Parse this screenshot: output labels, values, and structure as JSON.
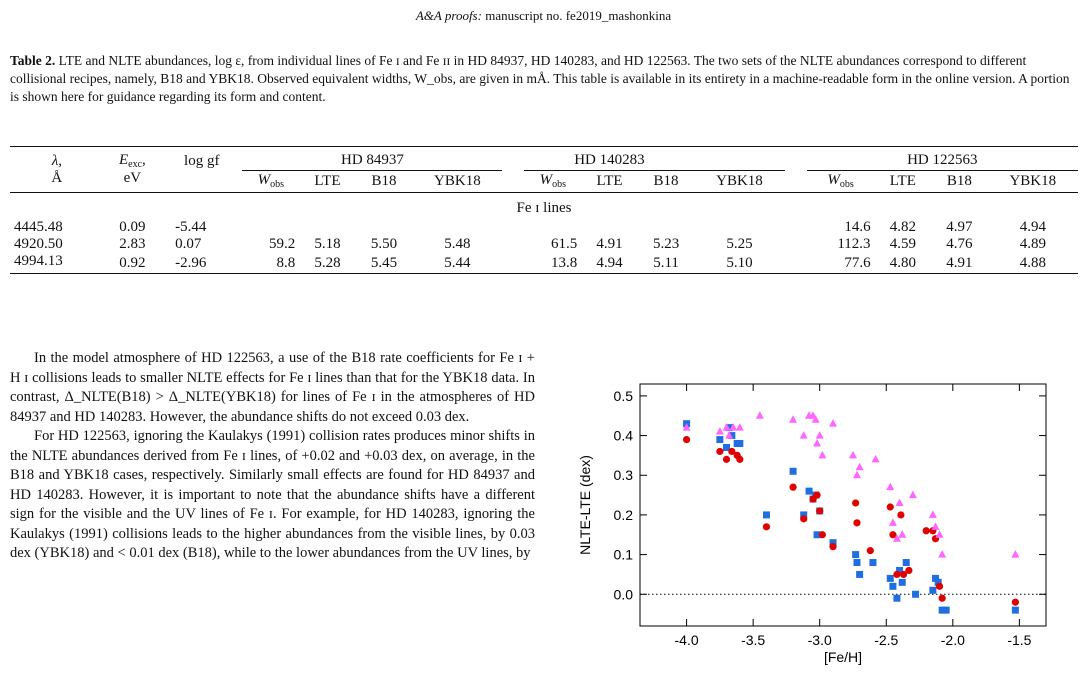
{
  "header": {
    "journal": "A&A proofs:",
    "rest": " manuscript no. fe2019_mashonkina"
  },
  "caption": {
    "label": "Table 2.",
    "text": " LTE and NLTE abundances, log ε, from individual lines of Fe ɪ and Fe ɪɪ in HD 84937, HD 140283, and HD 122563. The two sets of the NLTE abundances correspond to different collisional recipes, namely, B18 and YBK18. Observed equivalent widths, W_obs, are given in mÅ. This table is available in its entirety in a machine-readable form in the online version. A portion is shown here for guidance regarding its form and content."
  },
  "table": {
    "col_lambda": "λ,",
    "col_lambda_unit": "Å",
    "col_eexc": "E",
    "col_eexc_sub": "exc",
    "col_eexc_tail": ",",
    "col_eexc_unit": "eV",
    "col_loggf": "log gf",
    "stars": [
      "HD 84937",
      "HD 140283",
      "HD 122563"
    ],
    "sub_w": "W",
    "sub_w_sub": "obs",
    "sub_lte": "LTE",
    "sub_b18": "B18",
    "sub_ybk": "YBK18",
    "section": "Fe ɪ lines",
    "rows": [
      [
        "4445.48",
        "0.09",
        "-5.44",
        "",
        "",
        "",
        "",
        "",
        "",
        "",
        "",
        "14.6",
        "4.82",
        "4.97",
        "4.94"
      ],
      [
        "4920.50",
        "2.83",
        "0.07",
        "59.2",
        "5.18",
        "5.50",
        "5.48",
        "61.5",
        "4.91",
        "5.23",
        "5.25",
        "112.3",
        "4.59",
        "4.76",
        "4.89"
      ],
      [
        "4994.13",
        "0.92",
        "-2.96",
        "8.8",
        "5.28",
        "5.45",
        "5.44",
        "13.8",
        "4.94",
        "5.11",
        "5.10",
        "77.6",
        "4.80",
        "4.91",
        "4.88"
      ]
    ]
  },
  "body": {
    "p1": "In the model atmosphere of HD 122563, a use of the B18 rate coefficients for Fe ɪ + H ɪ collisions leads to smaller NLTE effects for Fe ɪ lines than that for the YBK18 data. In contrast, Δ_NLTE(B18) > Δ_NLTE(YBK18) for lines of Fe ɪ in the atmospheres of HD 84937 and HD 140283. However, the abundance shifts do not exceed 0.03 dex.",
    "p2": "For HD 122563, ignoring the Kaulakys (1991) collision rates produces minor shifts in the NLTE abundances derived from Fe ɪ lines, of +0.02 and +0.03 dex, on average, in the B18 and YBK18 cases, respectively. Similarly small effects are found for HD 84937 and HD 140283. However, it is important to note that the abundance shifts have a different sign for the visible and the UV lines of Fe ɪ. For example, for HD 140283, ignoring the Kaulakys (1991) collisions leads to the higher abundances from the visible lines, by 0.03 dex (YBK18) and < 0.01 dex (B18), while to the lower abundances from the UV lines, by"
  },
  "chart_data": {
    "type": "scatter",
    "xlabel": "[Fe/H]",
    "ylabel": "NLTE-LTE (dex)",
    "xlim": [
      -4.35,
      -1.3
    ],
    "ylim": [
      -0.08,
      0.53
    ],
    "xticks": [
      "-4.0",
      "-3.5",
      "-3.0",
      "-2.5",
      "-2.0",
      "-1.5"
    ],
    "xtick_values": [
      -4.0,
      -3.5,
      -3.0,
      -2.5,
      -2.0,
      -1.5
    ],
    "yticks": [
      "0.0",
      "0.1",
      "0.2",
      "0.3",
      "0.4",
      "0.5"
    ],
    "ytick_values": [
      0.0,
      0.1,
      0.2,
      0.3,
      0.4,
      0.5
    ],
    "zero_line": "dotted",
    "series": [
      {
        "marker": "square",
        "color": "#1f6fe0",
        "points": [
          [
            -4.0,
            0.43
          ],
          [
            -3.75,
            0.39
          ],
          [
            -3.7,
            0.37
          ],
          [
            -3.68,
            0.42
          ],
          [
            -3.66,
            0.4
          ],
          [
            -3.62,
            0.38
          ],
          [
            -3.6,
            0.38
          ],
          [
            -3.4,
            0.2
          ],
          [
            -3.2,
            0.31
          ],
          [
            -3.12,
            0.2
          ],
          [
            -3.08,
            0.26
          ],
          [
            -3.05,
            0.24
          ],
          [
            -3.03,
            0.25
          ],
          [
            -3.02,
            0.15
          ],
          [
            -3.0,
            0.21
          ],
          [
            -2.9,
            0.13
          ],
          [
            -2.73,
            0.1
          ],
          [
            -2.72,
            0.08
          ],
          [
            -2.7,
            0.05
          ],
          [
            -2.6,
            0.08
          ],
          [
            -2.47,
            0.04
          ],
          [
            -2.45,
            0.02
          ],
          [
            -2.42,
            -0.01
          ],
          [
            -2.4,
            0.06
          ],
          [
            -2.38,
            0.03
          ],
          [
            -2.35,
            0.08
          ],
          [
            -2.28,
            0.0
          ],
          [
            -2.15,
            0.01
          ],
          [
            -2.13,
            0.04
          ],
          [
            -2.11,
            0.03
          ],
          [
            -2.08,
            -0.04
          ],
          [
            -2.05,
            -0.04
          ],
          [
            -1.53,
            -0.04
          ]
        ]
      },
      {
        "marker": "circle",
        "color": "#e00000",
        "points": [
          [
            -4.0,
            0.39
          ],
          [
            -3.75,
            0.36
          ],
          [
            -3.7,
            0.34
          ],
          [
            -3.66,
            0.36
          ],
          [
            -3.62,
            0.35
          ],
          [
            -3.6,
            0.34
          ],
          [
            -3.4,
            0.17
          ],
          [
            -3.2,
            0.27
          ],
          [
            -3.12,
            0.19
          ],
          [
            -3.05,
            0.24
          ],
          [
            -3.02,
            0.25
          ],
          [
            -3.0,
            0.21
          ],
          [
            -2.98,
            0.15
          ],
          [
            -2.9,
            0.12
          ],
          [
            -2.73,
            0.23
          ],
          [
            -2.72,
            0.18
          ],
          [
            -2.62,
            0.11
          ],
          [
            -2.47,
            0.22
          ],
          [
            -2.45,
            0.15
          ],
          [
            -2.42,
            0.05
          ],
          [
            -2.39,
            0.2
          ],
          [
            -2.37,
            0.05
          ],
          [
            -2.33,
            0.06
          ],
          [
            -2.2,
            0.16
          ],
          [
            -2.15,
            0.16
          ],
          [
            -2.13,
            0.14
          ],
          [
            -2.1,
            0.02
          ],
          [
            -2.08,
            -0.01
          ],
          [
            -1.53,
            -0.02
          ]
        ]
      },
      {
        "marker": "triangle",
        "color": "#ff66ff",
        "points": [
          [
            -4.0,
            0.42
          ],
          [
            -3.75,
            0.41
          ],
          [
            -3.7,
            0.42
          ],
          [
            -3.68,
            0.4
          ],
          [
            -3.65,
            0.42
          ],
          [
            -3.6,
            0.42
          ],
          [
            -3.45,
            0.45
          ],
          [
            -3.2,
            0.44
          ],
          [
            -3.12,
            0.4
          ],
          [
            -3.08,
            0.45
          ],
          [
            -3.05,
            0.45
          ],
          [
            -3.03,
            0.44
          ],
          [
            -3.02,
            0.38
          ],
          [
            -3.0,
            0.4
          ],
          [
            -2.98,
            0.35
          ],
          [
            -2.9,
            0.43
          ],
          [
            -2.75,
            0.35
          ],
          [
            -2.72,
            0.3
          ],
          [
            -2.7,
            0.32
          ],
          [
            -2.58,
            0.34
          ],
          [
            -2.47,
            0.27
          ],
          [
            -2.45,
            0.18
          ],
          [
            -2.42,
            0.14
          ],
          [
            -2.4,
            0.23
          ],
          [
            -2.38,
            0.15
          ],
          [
            -2.3,
            0.25
          ],
          [
            -2.15,
            0.2
          ],
          [
            -2.13,
            0.17
          ],
          [
            -2.1,
            0.15
          ],
          [
            -2.08,
            0.1
          ],
          [
            -1.53,
            0.1
          ]
        ]
      }
    ]
  }
}
